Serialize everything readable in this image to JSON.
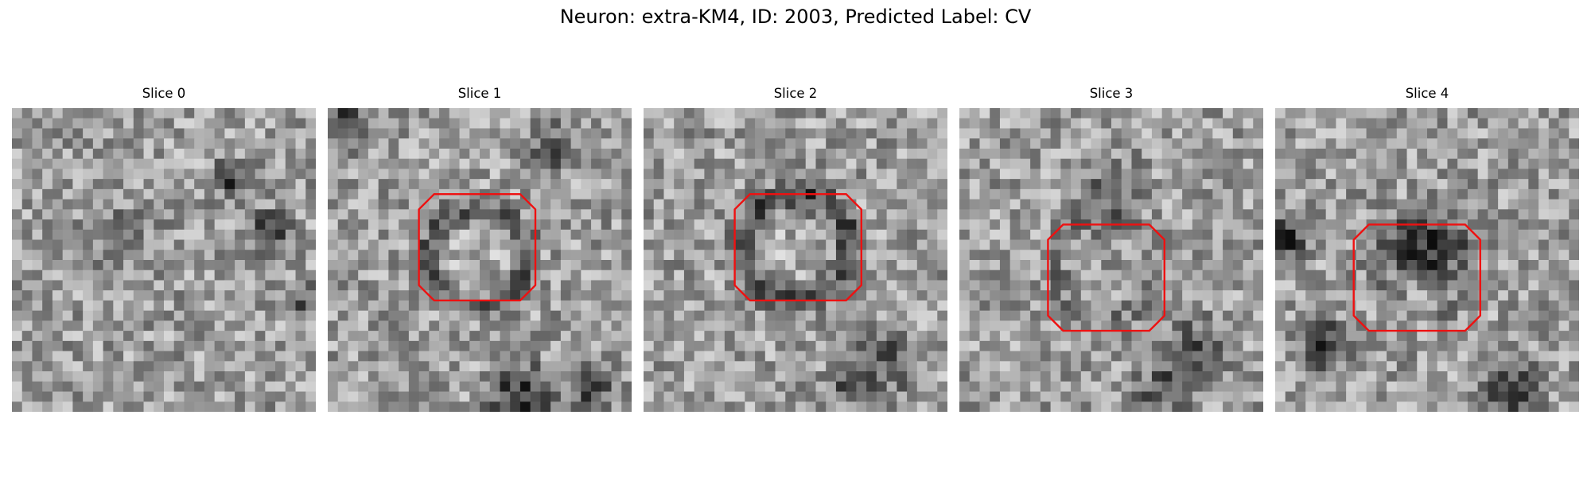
{
  "figure": {
    "title": "Neuron: extra-KM4, ID: 2003, Predicted Label: CV"
  },
  "panels": [
    {
      "title": "Slice 0",
      "has_contour": false
    },
    {
      "title": "Slice 1",
      "has_contour": true
    },
    {
      "title": "Slice 2",
      "has_contour": true
    },
    {
      "title": "Slice 3",
      "has_contour": true
    },
    {
      "title": "Slice 4",
      "has_contour": true
    }
  ],
  "colors": {
    "contour": "#ee1111",
    "background": "#ffffff"
  },
  "icons": {
    "image": "grayscale-noise-image"
  }
}
